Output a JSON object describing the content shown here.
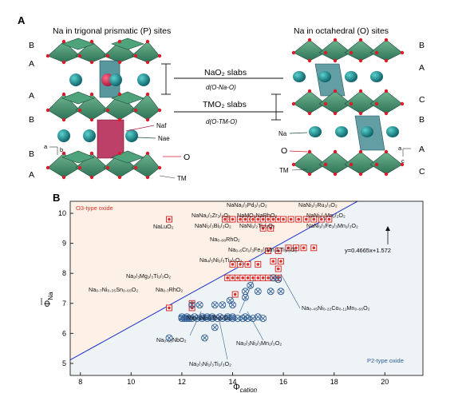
{
  "panel_a": {
    "label": "A",
    "left_title": "Na in trigonal prismatic (P) sites",
    "right_title": "Na in octahedral (O) sites",
    "left_stacking": [
      "B",
      "A",
      "A",
      "B",
      "B",
      "A"
    ],
    "right_stacking": [
      "B",
      "A",
      "C",
      "B",
      "A",
      "C"
    ],
    "nao2_slabs": "NaO₂ slabs",
    "nao2_d": "d(O-Na-O)",
    "tmo2_slabs": "TMO₂ slabs",
    "tmo2_d": "d(O-TM-O)",
    "left_labels": {
      "naf": "Naf",
      "nae": "Nae",
      "o": "O",
      "tm": "TM"
    },
    "right_labels": {
      "na": "Na",
      "o": "O",
      "tm": "TM"
    },
    "colors": {
      "octahedron": "#3e8f6a",
      "na_atom": "#0e7a80",
      "oxygen": "#d91c2a",
      "na_site": "#b01f4c"
    }
  },
  "panel_b": {
    "label": "B",
    "region_top_label": "O3-type oxide",
    "region_bottom_label": "P2-type oxide",
    "fit_equation": "y=0.4665x+1.572",
    "colors": {
      "o3_marker": "#d9302c",
      "p2_marker": "#2f5d93",
      "line": "#1a2fd0",
      "o3_bg": "#fdf0e6",
      "p2_bg": "#eef3f5"
    },
    "compound_labels": [
      "NaNa₁/₃Pd₂/₃O₂",
      "NaNi₁/₃Ru₂/₃O₂",
      "NaNa₁/₃Zr₂/₃O₂",
      "NaMO₂NaRhO₂",
      "NaNi₁/₂Mn₁/₂O₂",
      "NaLuO₂",
      "NaNi₂/₃Bi₁/₃O₂",
      "NaNi₁/₂Ti₁/₂O₂",
      "NaNi₁/₃Fe₁/₃Mn₁/₃O₂",
      "Na₀.₈₈RhO₂",
      "Na₀.₆Cr₁/₃Fe₁/₃Mn₁/₆Ti₁/₆O₂",
      "Na₄/₅Ni₂/₅Ti₃/₅O₂",
      "Na₂/₃Mg₁/₃Ti₂/₃O₂",
      "Na₀.₇Ni₀.₃₅Sn₀.₆₅O₂",
      "Na₀.₇RhO₂",
      "Na₂/₃Ni₂/₃Te₁/₃O₂",
      "Na₀.₄₅Ni₀.₂₂Co₀.₁₁Mn₀.₆₆O₂",
      "Na₂/₃Ni₁/₃Mn₂/₃O₂",
      "Na₀.₆₅NbO₂",
      "Na₂/₃Ni₁/₃Ti₂/₃O₂"
    ]
  },
  "chart_data": {
    "type": "scatter",
    "title": "",
    "xlabel": "Φcation",
    "ylabel": "Φ̅Na",
    "xlim": [
      7.6,
      21.5
    ],
    "ylim": [
      4.6,
      10.4
    ],
    "xticks": [
      8,
      10,
      12,
      14,
      16,
      18,
      20
    ],
    "yticks": [
      5,
      6,
      7,
      8,
      9,
      10
    ],
    "grid": false,
    "legend": "none",
    "fit_line": {
      "slope": 0.4665,
      "intercept": 1.572
    },
    "series": [
      {
        "name": "O3-type oxide",
        "x": [
          11.5,
          11.5,
          12.4,
          13.7,
          13.9,
          14.0,
          14.3,
          14.5,
          14.7,
          14.8,
          15.0,
          15.2,
          15.4,
          15.6,
          15.8,
          16.0,
          16.3,
          16.6,
          16.9,
          17.2,
          17.5,
          17.8,
          15.2,
          15.5,
          16.2,
          16.5,
          16.8,
          17.2,
          15.8,
          15.4,
          15.6,
          15.9,
          14.3,
          14.6,
          15.0,
          13.8,
          14.0,
          14.2,
          14.4,
          14.6,
          14.8,
          15.0,
          15.2,
          15.4,
          15.6,
          15.8,
          15.8,
          14.0,
          14.1,
          12.4
        ],
        "y": [
          9.8,
          6.85,
          6.85,
          9.8,
          9.8,
          9.8,
          9.8,
          9.8,
          9.8,
          9.8,
          9.8,
          9.8,
          9.8,
          9.8,
          9.8,
          9.8,
          9.8,
          9.8,
          9.8,
          9.8,
          9.8,
          9.8,
          9.5,
          9.5,
          8.85,
          8.85,
          8.85,
          8.85,
          8.75,
          8.75,
          8.4,
          8.4,
          8.3,
          8.3,
          8.3,
          7.85,
          7.85,
          7.85,
          7.85,
          7.85,
          7.85,
          7.85,
          7.85,
          7.85,
          7.85,
          7.85,
          8.15,
          8.3,
          7.3,
          7.0
        ]
      },
      {
        "name": "P2-type oxide",
        "x": [
          12.0,
          12.1,
          12.2,
          12.3,
          12.4,
          12.6,
          12.8,
          13.0,
          13.2,
          13.4,
          13.6,
          13.8,
          14.0,
          14.2,
          14.4,
          14.6,
          14.8,
          15.2,
          12.0,
          12.2,
          12.5,
          12.8,
          13.0,
          13.2,
          13.5,
          13.8,
          14.0,
          14.5,
          15.0,
          12.4,
          12.7,
          13.3,
          13.6,
          14.0,
          14.5,
          15.0,
          15.5,
          15.8,
          15.9,
          11.5,
          13.9,
          12.9,
          13.3,
          14.5,
          14.7,
          15.6
        ],
        "y": [
          6.5,
          6.5,
          6.5,
          6.5,
          6.5,
          6.5,
          6.5,
          6.5,
          6.5,
          6.5,
          6.5,
          6.5,
          6.5,
          6.5,
          6.5,
          6.5,
          6.5,
          6.5,
          6.55,
          6.55,
          6.55,
          6.55,
          6.55,
          6.55,
          6.55,
          6.55,
          6.55,
          6.55,
          6.55,
          6.95,
          6.95,
          6.95,
          6.95,
          6.95,
          7.4,
          7.4,
          7.4,
          7.8,
          7.4,
          5.85,
          7.1,
          5.85,
          6.2,
          7.2,
          7.6,
          7.85
        ]
      }
    ]
  }
}
